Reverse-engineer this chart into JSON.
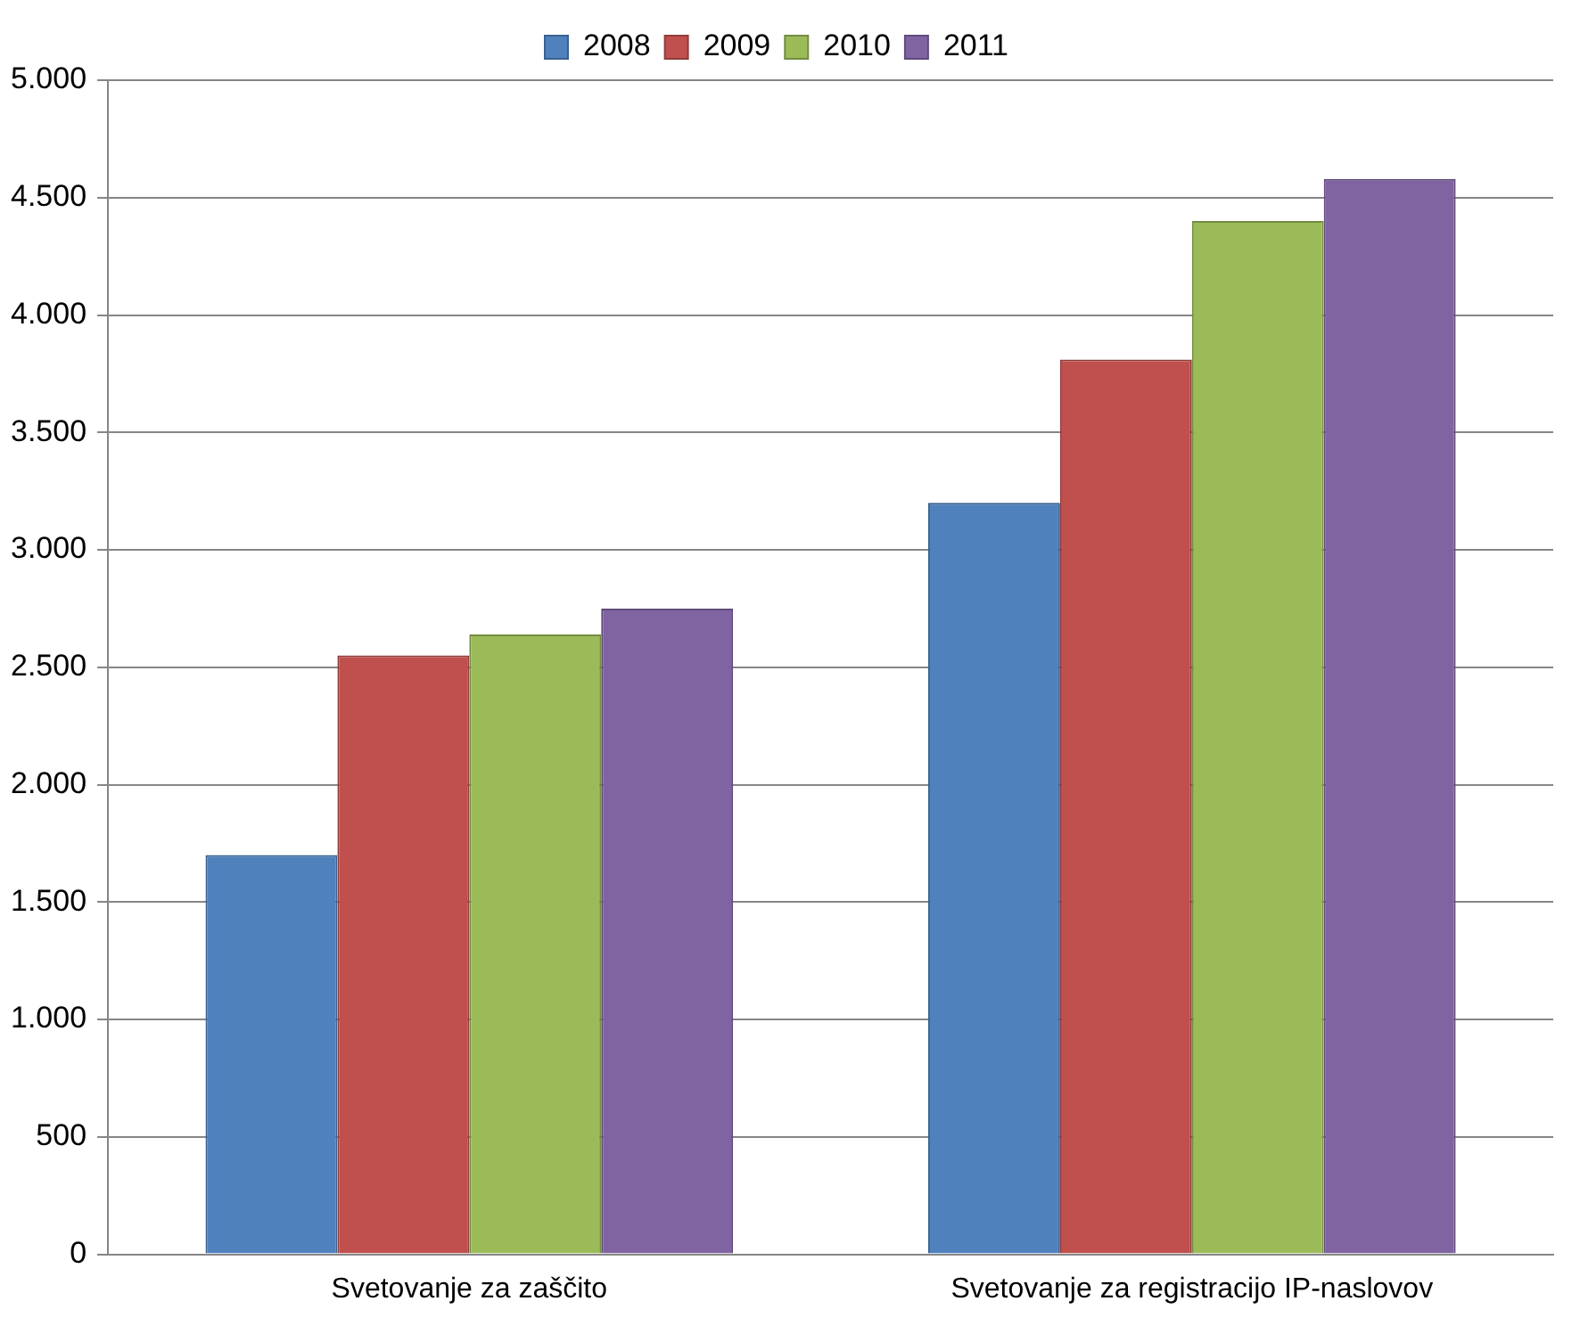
{
  "chart_data": {
    "type": "bar",
    "categories": [
      "Svetovanje za zaščito",
      "Svetovanje za registracijo IP-naslovov"
    ],
    "series": [
      {
        "name": "2008",
        "color": "#4f81bd",
        "values": [
          1700,
          3200
        ]
      },
      {
        "name": "2009",
        "color": "#c0504d",
        "values": [
          2550,
          3810
        ]
      },
      {
        "name": "2010",
        "color": "#9bbb59",
        "values": [
          2640,
          4400
        ]
      },
      {
        "name": "2011",
        "color": "#8064a2",
        "values": [
          2750,
          4580
        ]
      }
    ],
    "ylim": [
      0,
      5000
    ],
    "yticks": [
      {
        "value": 0,
        "label": "0"
      },
      {
        "value": 500,
        "label": "500"
      },
      {
        "value": 1000,
        "label": "1.000"
      },
      {
        "value": 1500,
        "label": "1.500"
      },
      {
        "value": 2000,
        "label": "2.000"
      },
      {
        "value": 2500,
        "label": "2.500"
      },
      {
        "value": 3000,
        "label": "3.000"
      },
      {
        "value": 3500,
        "label": "3.500"
      },
      {
        "value": 4000,
        "label": "4.000"
      },
      {
        "value": 4500,
        "label": "4.500"
      },
      {
        "value": 5000,
        "label": "5.000"
      }
    ],
    "grid": "y",
    "legend": "top"
  }
}
